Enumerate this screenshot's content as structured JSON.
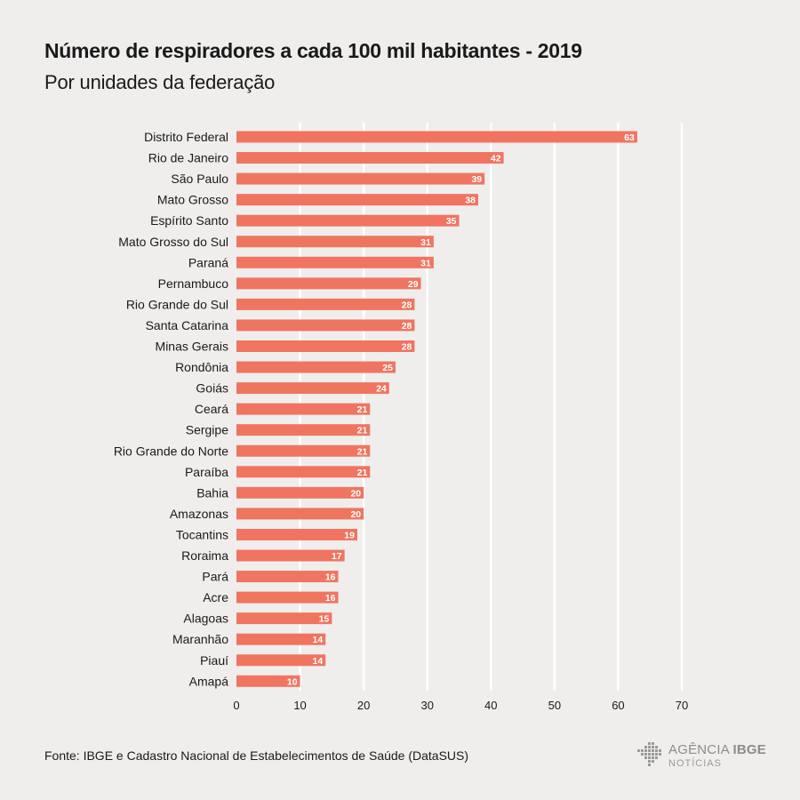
{
  "title": "Número de respiradores a cada 100 mil habitantes - 2019",
  "subtitle": "Por unidades da federação",
  "source": "Fonte: IBGE e Cadastro Nacional de Estabelecimentos de Saúde (DataSUS)",
  "logo": {
    "line1_regular": "AGÊNCIA",
    "line1_bold": "IBGE",
    "line2": "NOTÍCIAS"
  },
  "colors": {
    "bar": "#f07560",
    "background": "#efeeed",
    "grid": "#ffffff",
    "bar_label": "#ffffff"
  },
  "chart_data": {
    "type": "bar",
    "orientation": "horizontal",
    "title": "Número de respiradores a cada 100 mil habitantes - 2019",
    "subtitle": "Por unidades da federação",
    "categories": [
      "Distrito Federal",
      "Rio de Janeiro",
      "São Paulo",
      "Mato Grosso",
      "Espírito Santo",
      "Mato Grosso do Sul",
      "Paraná",
      "Pernambuco",
      "Rio Grande do Sul",
      "Santa Catarina",
      "Minas Gerais",
      "Rondônia",
      "Goiás",
      "Ceará",
      "Sergipe",
      "Rio Grande do Norte",
      "Paraíba",
      "Bahia",
      "Amazonas",
      "Tocantins",
      "Roraima",
      "Pará",
      "Acre",
      "Alagoas",
      "Maranhão",
      "Piauí",
      "Amapá"
    ],
    "values": [
      63,
      42,
      39,
      38,
      35,
      31,
      31,
      29,
      28,
      28,
      28,
      25,
      24,
      21,
      21,
      21,
      21,
      20,
      20,
      19,
      17,
      16,
      16,
      15,
      14,
      14,
      10
    ],
    "xlim": [
      0,
      70
    ],
    "xticks": [
      0,
      10,
      20,
      30,
      40,
      50,
      60,
      70
    ],
    "grid": true,
    "legend": "none",
    "data_labels": "inside-end"
  }
}
